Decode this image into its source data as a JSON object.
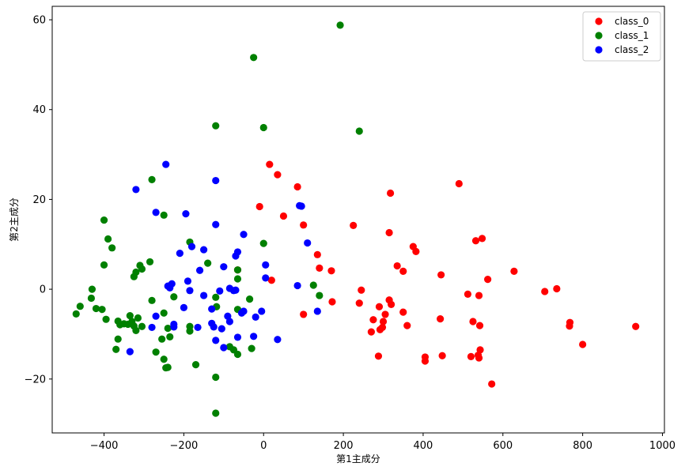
{
  "chart_data": {
    "type": "scatter",
    "title": "",
    "xlabel": "第1主成分",
    "ylabel": "第2主成分",
    "xlim": [
      -530,
      1005
    ],
    "ylim": [
      -32,
      63
    ],
    "xticks": [
      -400,
      -200,
      0,
      200,
      400,
      600,
      800,
      1000
    ],
    "yticks": [
      -20,
      0,
      20,
      40,
      60
    ],
    "xtick_labels": [
      "−400",
      "−200",
      "0",
      "200",
      "400",
      "600",
      "800",
      "1000"
    ],
    "ytick_labels": [
      "−20",
      "0",
      "20",
      "40",
      "60"
    ],
    "grid": false,
    "legend_position": "top-right",
    "series": [
      {
        "name": "class_0",
        "color": "#ff0000",
        "points": [
          [
            15,
            27.8
          ],
          [
            35,
            25.5
          ],
          [
            -10,
            18.4
          ],
          [
            20,
            2
          ],
          [
            -65,
            4.3
          ],
          [
            50,
            16.3
          ],
          [
            85,
            22.8
          ],
          [
            100,
            14.3
          ],
          [
            135,
            7.7
          ],
          [
            140,
            4.7
          ],
          [
            170,
            4.1
          ],
          [
            100,
            -5.6
          ],
          [
            172,
            -2.8
          ],
          [
            225,
            14.2
          ],
          [
            245,
            -0.2
          ],
          [
            240,
            -3.1
          ],
          [
            318,
            21.4
          ],
          [
            315,
            12.6
          ],
          [
            335,
            5.2
          ],
          [
            350,
            4
          ],
          [
            375,
            9.5
          ],
          [
            382,
            8.4
          ],
          [
            445,
            3.2
          ],
          [
            490,
            23.5
          ],
          [
            532,
            10.8
          ],
          [
            548,
            11.3
          ],
          [
            562,
            2.2
          ],
          [
            628,
            4
          ],
          [
            512,
            -1.1
          ],
          [
            540,
            -1.4
          ],
          [
            315,
            -2.4
          ],
          [
            320,
            -3.4
          ],
          [
            290,
            -3.9
          ],
          [
            300,
            -7.2
          ],
          [
            305,
            -5.6
          ],
          [
            275,
            -6.8
          ],
          [
            350,
            -5.1
          ],
          [
            360,
            -8.1
          ],
          [
            298,
            -8.5
          ],
          [
            292,
            -9
          ],
          [
            270,
            -9.5
          ],
          [
            288,
            -14.9
          ],
          [
            443,
            -6.6
          ],
          [
            405,
            -15.1
          ],
          [
            405,
            -16
          ],
          [
            448,
            -14.8
          ],
          [
            520,
            -15
          ],
          [
            538,
            -14.7
          ],
          [
            540,
            -15.3
          ],
          [
            525,
            -7.2
          ],
          [
            542,
            -8.1
          ],
          [
            543,
            -13.5
          ],
          [
            572,
            -21.1
          ],
          [
            705,
            -0.5
          ],
          [
            735,
            0.1
          ],
          [
            768,
            -7.4
          ],
          [
            767,
            -8.2
          ],
          [
            800,
            -12.3
          ],
          [
            933,
            -8.3
          ]
        ]
      },
      {
        "name": "class_1",
        "color": "#008000",
        "points": [
          [
            -25,
            51.6
          ],
          [
            192,
            58.8
          ],
          [
            240,
            35.2
          ],
          [
            -120,
            36.4
          ],
          [
            0,
            36
          ],
          [
            -280,
            24.4
          ],
          [
            -250,
            16.5
          ],
          [
            -400,
            15.4
          ],
          [
            -390,
            11.2
          ],
          [
            -380,
            9.2
          ],
          [
            -400,
            5.4
          ],
          [
            -305,
            4.5
          ],
          [
            -310,
            5.3
          ],
          [
            -285,
            6.1
          ],
          [
            -320,
            3.8
          ],
          [
            -325,
            2.8
          ],
          [
            -185,
            10.5
          ],
          [
            -140,
            5.8
          ],
          [
            0,
            10.2
          ],
          [
            -65,
            4.3
          ],
          [
            -65,
            2.3
          ],
          [
            -430,
            0
          ],
          [
            -432,
            -2
          ],
          [
            -420,
            -4.3
          ],
          [
            -405,
            -4.5
          ],
          [
            -395,
            -6.7
          ],
          [
            -460,
            -3.8
          ],
          [
            -470,
            -5.5
          ],
          [
            -365,
            -7.1
          ],
          [
            -360,
            -7.9
          ],
          [
            -350,
            -7.7
          ],
          [
            -340,
            -7.8
          ],
          [
            -335,
            -5.9
          ],
          [
            -330,
            -7.2
          ],
          [
            -325,
            -8.2
          ],
          [
            -320,
            -9.2
          ],
          [
            -315,
            -6.4
          ],
          [
            -305,
            -8.3
          ],
          [
            -365,
            -11.1
          ],
          [
            -370,
            -13.4
          ],
          [
            -280,
            -2.5
          ],
          [
            -250,
            -5.3
          ],
          [
            -240,
            -8.7
          ],
          [
            -235,
            -10.6
          ],
          [
            -225,
            -1.7
          ],
          [
            -255,
            -11.1
          ],
          [
            -270,
            -14
          ],
          [
            -250,
            -15.6
          ],
          [
            -240,
            -17.4
          ],
          [
            -245,
            -17.5
          ],
          [
            -185,
            -8.3
          ],
          [
            -185,
            -9.3
          ],
          [
            -120,
            -1.8
          ],
          [
            -118,
            -3.9
          ],
          [
            -85,
            -12.8
          ],
          [
            -75,
            -13.5
          ],
          [
            -65,
            -14.5
          ],
          [
            -65,
            -4.5
          ],
          [
            -35,
            -2.2
          ],
          [
            -30,
            -13.2
          ],
          [
            -170,
            -16.8
          ],
          [
            -120,
            -19.6
          ],
          [
            -120,
            -27.6
          ],
          [
            125,
            0.9
          ],
          [
            140,
            -1.4
          ]
        ]
      },
      {
        "name": "class_2",
        "color": "#0000ff",
        "points": [
          [
            -245,
            27.8
          ],
          [
            -320,
            22.2
          ],
          [
            -120,
            24.2
          ],
          [
            -270,
            17.1
          ],
          [
            -195,
            16.8
          ],
          [
            -180,
            9.5
          ],
          [
            -150,
            8.8
          ],
          [
            -210,
            8
          ],
          [
            -160,
            4.2
          ],
          [
            -120,
            14.4
          ],
          [
            -50,
            12.2
          ],
          [
            90,
            18.6
          ],
          [
            95,
            18.5
          ],
          [
            110,
            10.3
          ],
          [
            -70,
            7.4
          ],
          [
            -65,
            8.3
          ],
          [
            -100,
            5
          ],
          [
            5,
            5.4
          ],
          [
            5,
            2.5
          ],
          [
            -190,
            1.8
          ],
          [
            -185,
            -0.3
          ],
          [
            -230,
            1.2
          ],
          [
            -235,
            0.3
          ],
          [
            -240,
            0.7
          ],
          [
            -150,
            -1.4
          ],
          [
            -110,
            -0.4
          ],
          [
            -85,
            0.2
          ],
          [
            -70,
            -0.2
          ],
          [
            -75,
            -0.3
          ],
          [
            -200,
            -4.1
          ],
          [
            -130,
            -4.4
          ],
          [
            -90,
            -6
          ],
          [
            -85,
            -7.2
          ],
          [
            -55,
            -5.3
          ],
          [
            -50,
            -4.9
          ],
          [
            -5,
            -4.9
          ],
          [
            -20,
            -6.2
          ],
          [
            -270,
            -6
          ],
          [
            -225,
            -7.8
          ],
          [
            -225,
            -8.4
          ],
          [
            -165,
            -8.5
          ],
          [
            -130,
            -7.6
          ],
          [
            -125,
            -8.4
          ],
          [
            -105,
            -8.8
          ],
          [
            -120,
            -11.4
          ],
          [
            -100,
            -13
          ],
          [
            -65,
            -10.7
          ],
          [
            -25,
            -10.5
          ],
          [
            35,
            -11.2
          ],
          [
            85,
            0.8
          ],
          [
            135,
            -4.9
          ],
          [
            -280,
            -8.5
          ],
          [
            -335,
            -13.9
          ]
        ]
      }
    ]
  }
}
